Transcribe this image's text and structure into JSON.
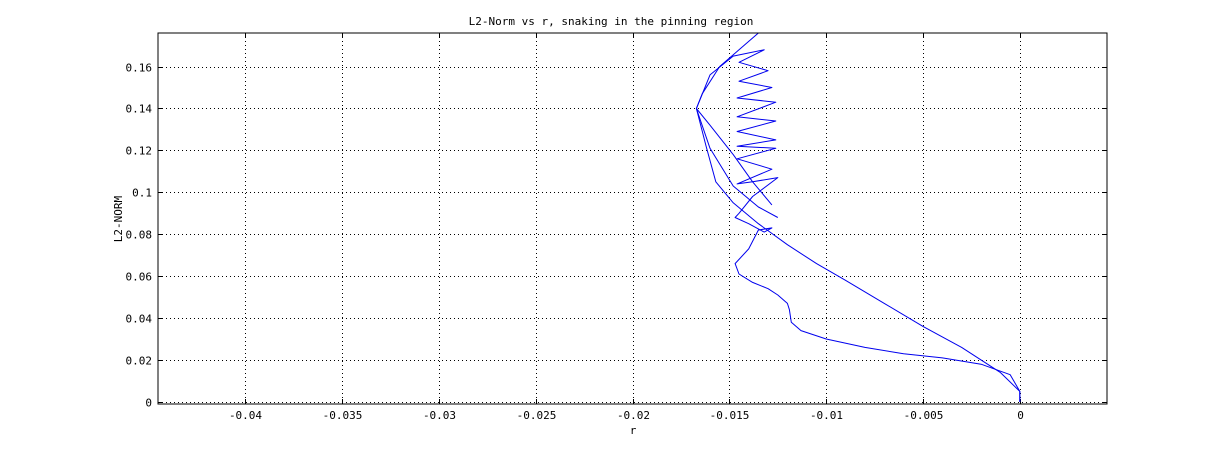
{
  "chart_data": {
    "type": "line",
    "title": "L2-Norm vs r, snaking in the pinning region",
    "xlabel": "r",
    "ylabel": "L2-NORM",
    "xlim": [
      -0.0445,
      0.0045
    ],
    "ylim": [
      -0.001,
      0.176
    ],
    "xticks": [
      -0.04,
      -0.035,
      -0.03,
      -0.025,
      -0.02,
      -0.015,
      -0.01,
      -0.005,
      0
    ],
    "xtick_labels": [
      "-0.04",
      "-0.035",
      "-0.03",
      "-0.025",
      "-0.02",
      "-0.015",
      "-0.01",
      "-0.005",
      "0"
    ],
    "yticks": [
      0,
      0.02,
      0.04,
      0.06,
      0.08,
      0.1,
      0.12,
      0.14,
      0.16
    ],
    "ytick_labels": [
      "0",
      "0.02",
      "0.04",
      "0.06",
      "0.08",
      "0.1",
      "0.12",
      "0.14",
      "0.16"
    ],
    "grid": true,
    "line_color": "#0000ee",
    "series": [
      {
        "x": [
          0.0,
          0.0,
          -0.0005,
          -0.002,
          -0.004,
          -0.006,
          -0.008,
          -0.01,
          -0.0113,
          -0.0118,
          -0.0119,
          -0.012,
          -0.0125,
          -0.013,
          -0.0138,
          -0.0145,
          -0.0147,
          -0.014,
          -0.0135,
          -0.0128,
          -0.0132,
          -0.014,
          -0.0147,
          -0.0145,
          -0.0138,
          -0.0125,
          -0.0138,
          -0.0146,
          -0.0128,
          -0.0146,
          -0.0126,
          -0.0146,
          -0.0126,
          -0.0146,
          -0.0126,
          -0.0146,
          -0.0126,
          -0.0146,
          -0.0128,
          -0.0145,
          -0.013,
          -0.0145,
          -0.0132,
          -0.0148,
          -0.016,
          -0.0167,
          -0.016,
          -0.0148,
          -0.0135,
          -0.0125
        ],
        "y": [
          0.0,
          0.005,
          0.013,
          0.018,
          0.021,
          0.023,
          0.026,
          0.03,
          0.034,
          0.038,
          0.044,
          0.047,
          0.051,
          0.054,
          0.057,
          0.061,
          0.066,
          0.073,
          0.082,
          0.083,
          0.081,
          0.085,
          0.088,
          0.09,
          0.098,
          0.107,
          0.105,
          0.104,
          0.111,
          0.116,
          0.121,
          0.122,
          0.125,
          0.129,
          0.134,
          0.136,
          0.143,
          0.145,
          0.15,
          0.153,
          0.158,
          0.162,
          0.168,
          0.165,
          0.156,
          0.14,
          0.121,
          0.103,
          0.093,
          0.088
        ]
      },
      {
        "x": [
          0.0,
          0.0,
          -0.001,
          -0.003,
          -0.005,
          -0.007,
          -0.009,
          -0.0105,
          -0.012,
          -0.0135,
          -0.0148,
          -0.0157,
          -0.0162,
          -0.0167,
          -0.0164,
          -0.0155,
          -0.014,
          -0.0125
        ],
        "y": [
          0.0,
          0.005,
          0.014,
          0.026,
          0.036,
          0.047,
          0.058,
          0.066,
          0.075,
          0.085,
          0.095,
          0.105,
          0.122,
          0.14,
          0.147,
          0.16,
          0.172,
          0.184
        ]
      },
      {
        "x": [
          -0.0167,
          -0.016,
          -0.0148,
          -0.0138,
          -0.0128
        ],
        "y": [
          0.14,
          0.132,
          0.118,
          0.105,
          0.094
        ]
      }
    ]
  }
}
